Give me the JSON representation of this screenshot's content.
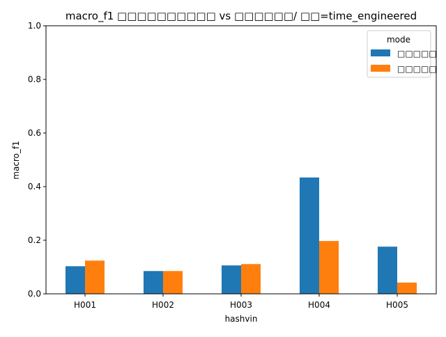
{
  "chart_data": {
    "type": "bar",
    "title": "macro_f1 □□□□□□□□□□ vs □□□□□□/ □□=time_engineered",
    "xlabel": "hashvin",
    "ylabel": "macro_f1",
    "categories": [
      "H001",
      "H002",
      "H003",
      "H004",
      "H005"
    ],
    "series": [
      {
        "name": "□□□□□",
        "color": "#1f77b4",
        "values": [
          0.103,
          0.085,
          0.106,
          0.434,
          0.176
        ]
      },
      {
        "name": "□□□□□",
        "color": "#ff7f0e",
        "values": [
          0.124,
          0.085,
          0.111,
          0.197,
          0.042
        ]
      }
    ],
    "ylim": [
      0,
      1.0
    ],
    "yticks": [
      0.0,
      0.2,
      0.4,
      0.6,
      0.8,
      1.0
    ],
    "ytick_labels": [
      "0.0",
      "0.2",
      "0.4",
      "0.6",
      "0.8",
      "1.0"
    ],
    "grid": false,
    "legend": {
      "title": "mode",
      "placement": "top-right"
    }
  }
}
